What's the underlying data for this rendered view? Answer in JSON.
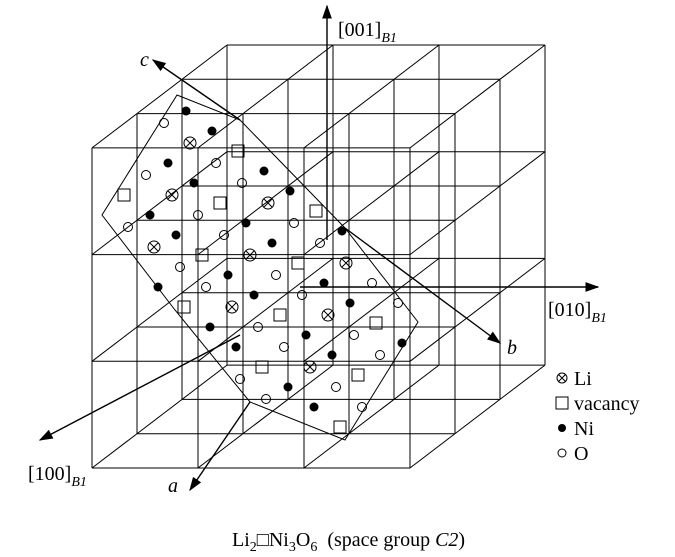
{
  "axes": [
    {
      "label": "[001]",
      "subscript": "B1"
    },
    {
      "label": "[010]",
      "subscript": "B1"
    },
    {
      "label": "[100]",
      "subscript": "B1"
    }
  ],
  "directions": [
    "c",
    "b",
    "a"
  ],
  "legend": [
    "Li",
    "vacancy",
    "Ni",
    "O"
  ],
  "caption": {
    "formula": [
      "Li",
      "2",
      "□Ni",
      "3",
      "O",
      "6"
    ],
    "space_group_prefix": "(space group",
    "space_group": "C2",
    "suffix": ")"
  }
}
